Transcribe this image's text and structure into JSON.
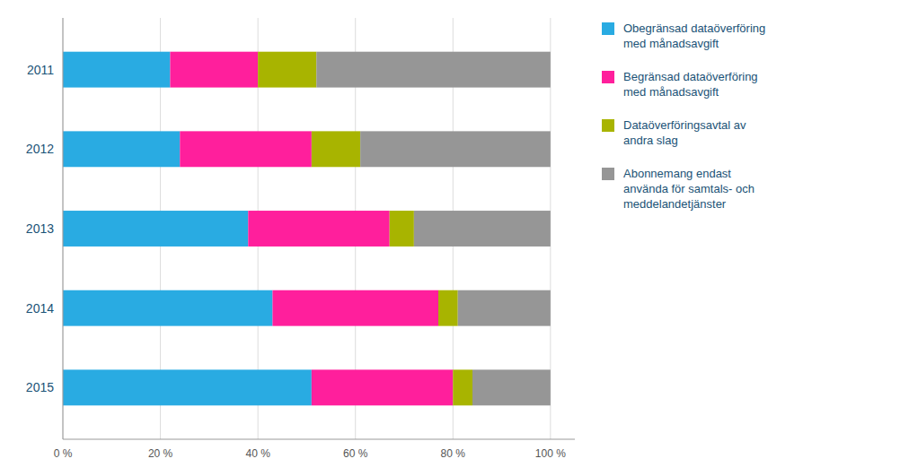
{
  "chart_data": {
    "type": "bar",
    "orientation": "horizontal",
    "stacked": true,
    "categories": [
      "2011",
      "2012",
      "2013",
      "2014",
      "2015"
    ],
    "series": [
      {
        "name": "Obegränsad dataöverföring\nmed månadsavgift",
        "color": "#29ABE2",
        "values": [
          22,
          24,
          38,
          43,
          51
        ]
      },
      {
        "name": "Begränsad dataöverföring\nmed månadsavgift",
        "color": "#FF1F9C",
        "values": [
          18,
          27,
          29,
          34,
          29
        ]
      },
      {
        "name": "Dataöverföringsavtal av\nandra slag",
        "color": "#A8B400",
        "values": [
          12,
          10,
          5,
          4,
          4
        ]
      },
      {
        "name": "Abonnemang endast\nanvända för samtals- och\nmeddelandetjänster",
        "color": "#969696",
        "values": [
          48,
          39,
          28,
          19,
          16
        ]
      }
    ],
    "xlim": [
      0,
      105
    ],
    "xticks": [
      {
        "value": 0,
        "label": "0 %"
      },
      {
        "value": 20,
        "label": "20 %"
      },
      {
        "value": 40,
        "label": "40 %"
      },
      {
        "value": 60,
        "label": "60 %"
      },
      {
        "value": 80,
        "label": "80 %"
      },
      {
        "value": 100,
        "label": "100 %"
      }
    ],
    "grid": true,
    "legend": "right"
  }
}
